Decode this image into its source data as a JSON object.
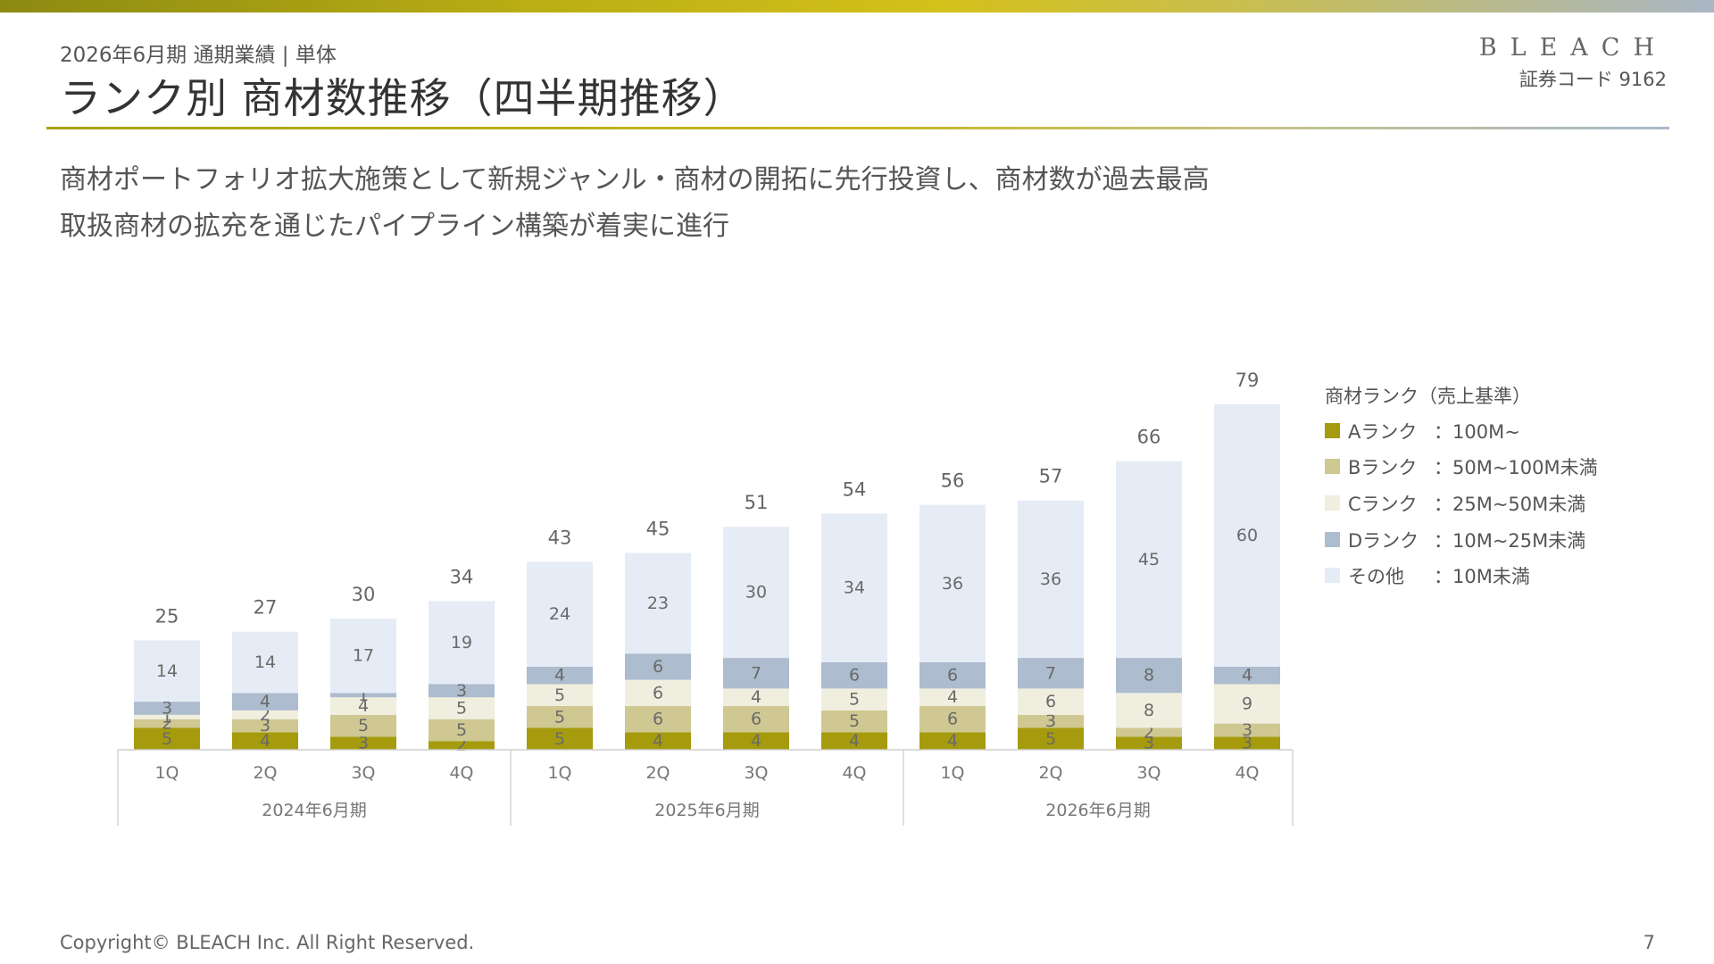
{
  "header": {
    "subtitle": "2026年6月期 通期業績 | 単体",
    "title": "ランク別 商材数推移（四半期推移）",
    "brand": "BLEACH",
    "code": "証券コード 9162"
  },
  "lead": [
    "商材ポートフォリオ拡大施策として新規ジャンル・商材の開拓に先行投資し、商材数が過去最高",
    "取扱商材の拡充を通じたパイプライン構築が着実に進行"
  ],
  "legend": {
    "title": "商材ランク（売上基準）",
    "items": [
      {
        "name": "Aランク",
        "range": "：100M~",
        "color": "#a59b0d"
      },
      {
        "name": "Bランク",
        "range": "：50M~100M未満",
        "color": "#cfc892"
      },
      {
        "name": "Cランク",
        "range": "：25M~50M未満",
        "color": "#f0eedf"
      },
      {
        "name": "Dランク",
        "range": "：10M~25M未満",
        "color": "#adbcce"
      },
      {
        "name": "その他",
        "range": "：10M未満",
        "color": "#e6ecf5"
      }
    ]
  },
  "chart_data": {
    "type": "bar",
    "stacked": true,
    "categories": [
      "1Q",
      "2Q",
      "3Q",
      "4Q",
      "1Q",
      "2Q",
      "3Q",
      "4Q",
      "1Q",
      "2Q",
      "3Q",
      "4Q"
    ],
    "groups": [
      {
        "label": "2024年6月期",
        "count": 4
      },
      {
        "label": "2025年6月期",
        "count": 4
      },
      {
        "label": "2026年6月期",
        "count": 4
      }
    ],
    "series": [
      {
        "name": "Aランク",
        "color": "#a59b0d",
        "values": [
          5,
          4,
          3,
          2,
          5,
          4,
          4,
          4,
          4,
          5,
          3,
          3
        ]
      },
      {
        "name": "Bランク",
        "color": "#cfc892",
        "values": [
          2,
          3,
          5,
          5,
          5,
          6,
          6,
          5,
          6,
          3,
          2,
          3
        ]
      },
      {
        "name": "Cランク",
        "color": "#f0eedf",
        "values": [
          1,
          2,
          4,
          5,
          5,
          6,
          4,
          5,
          4,
          6,
          8,
          9
        ]
      },
      {
        "name": "Dランク",
        "color": "#adbcce",
        "values": [
          3,
          4,
          1,
          3,
          4,
          6,
          7,
          6,
          6,
          7,
          8,
          4
        ]
      },
      {
        "name": "その他",
        "color": "#e6ecf5",
        "values": [
          14,
          14,
          17,
          19,
          24,
          23,
          30,
          34,
          36,
          36,
          45,
          60
        ]
      }
    ],
    "totals": [
      25,
      27,
      30,
      34,
      43,
      45,
      51,
      54,
      56,
      57,
      66,
      79
    ],
    "legend": "right"
  },
  "footer": {
    "copyright": "Copyright© BLEACH Inc. All Right Reserved.",
    "page": "7"
  }
}
